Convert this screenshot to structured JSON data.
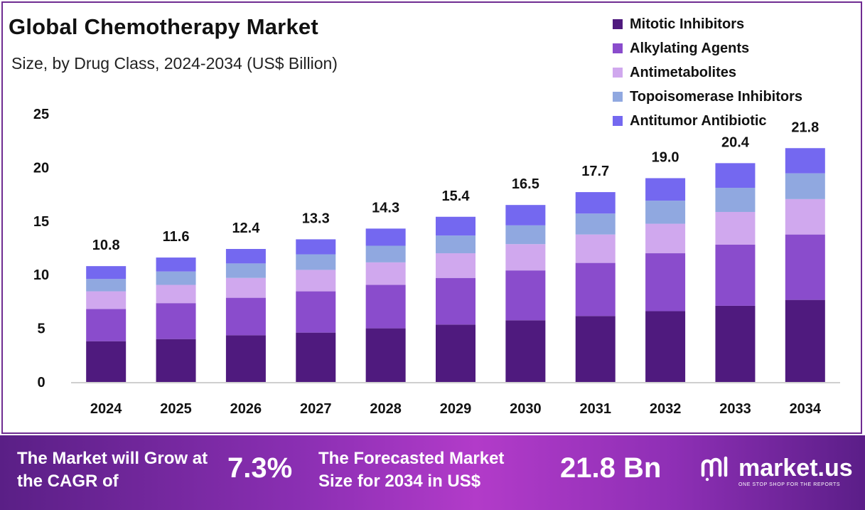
{
  "title": "Global Chemotherapy Market",
  "subtitle": "Size, by Drug Class, 2024-2034 (US$ Billion)",
  "colors": {
    "frame": "#6f2c91",
    "series": [
      "#4f1a7e",
      "#8a4ccc",
      "#d0a8ee",
      "#90a8e0",
      "#7468f0"
    ]
  },
  "chart_data": {
    "type": "bar",
    "stacked": true,
    "title": "Global Chemotherapy Market",
    "subtitle": "Size, by Drug Class, 2024-2034 (US$ Billion)",
    "xlabel": "",
    "ylabel": "",
    "ylim": [
      0,
      25
    ],
    "yticks": [
      "0",
      "5",
      "10",
      "15",
      "20",
      "25"
    ],
    "grid": false,
    "legend_position": "top-right",
    "categories": [
      "2024",
      "2025",
      "2026",
      "2027",
      "2028",
      "2029",
      "2030",
      "2031",
      "2032",
      "2033",
      "2034"
    ],
    "totals": [
      "10.8",
      "11.6",
      "12.4",
      "13.3",
      "14.3",
      "15.4",
      "16.5",
      "17.7",
      "19.0",
      "20.4",
      "21.8"
    ],
    "series": [
      {
        "name": "Mitotic Inhibitors",
        "values": [
          3.8,
          4.0,
          4.35,
          4.6,
          5.0,
          5.35,
          5.75,
          6.15,
          6.6,
          7.1,
          7.65
        ]
      },
      {
        "name": "Alkylating Agents",
        "values": [
          3.0,
          3.35,
          3.5,
          3.85,
          4.05,
          4.35,
          4.65,
          4.95,
          5.4,
          5.7,
          6.1
        ]
      },
      {
        "name": "Antimetabolites",
        "values": [
          1.65,
          1.7,
          1.85,
          2.0,
          2.1,
          2.3,
          2.45,
          2.65,
          2.75,
          3.05,
          3.3
        ]
      },
      {
        "name": "Topoisomerase Inhibitors",
        "values": [
          1.15,
          1.25,
          1.35,
          1.45,
          1.55,
          1.65,
          1.75,
          1.95,
          2.15,
          2.25,
          2.4
        ]
      },
      {
        "name": "Antitumor Antibiotic",
        "values": [
          1.2,
          1.3,
          1.35,
          1.4,
          1.6,
          1.75,
          1.9,
          2.0,
          2.1,
          2.3,
          2.35
        ]
      }
    ]
  },
  "footer": {
    "cagr_label": "The Market will Grow at the CAGR of",
    "cagr_value": "7.3%",
    "size_label": "The Forecasted Market Size for 2034 in US$",
    "size_value": "21.8 Bn",
    "brand_name": "market.us",
    "brand_tagline": "ONE STOP SHOP FOR THE REPORTS"
  }
}
